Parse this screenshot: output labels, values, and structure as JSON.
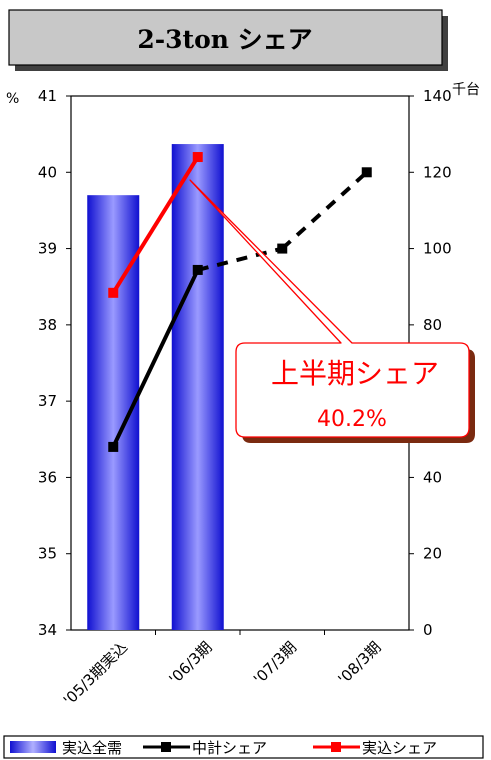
{
  "title": "2-3ton シェア",
  "chart_data": {
    "type": "bar+line",
    "categories": [
      "'05/3期実込",
      "'06/3期",
      "'07/3期",
      "'08/3期"
    ],
    "left_axis": {
      "unit": "%",
      "min": 34,
      "max": 41,
      "ticks": [
        34,
        35,
        36,
        37,
        38,
        39,
        40,
        41
      ]
    },
    "right_axis": {
      "unit": "千台",
      "min": 0,
      "max": 140,
      "ticks": [
        0,
        20,
        40,
        60,
        80,
        100,
        120,
        140
      ]
    },
    "series": [
      {
        "name": "実込全需",
        "type": "bar",
        "axis": "left",
        "color": "#6f6ff5",
        "values": [
          39.7,
          40.37,
          null,
          null
        ]
      },
      {
        "name": "中計シェア",
        "type": "line",
        "axis": "left",
        "color": "#000000",
        "values": [
          36.4,
          38.72,
          39.0,
          40.0
        ],
        "dashed_from_index": 2
      },
      {
        "name": "実込シェア",
        "type": "line",
        "axis": "left",
        "color": "#ff0000",
        "values": [
          38.42,
          40.2,
          null,
          null
        ]
      }
    ],
    "grid": false,
    "legend_position": "bottom",
    "annotation": {
      "line1": "上半期シェア",
      "line2": "40.2%"
    }
  }
}
